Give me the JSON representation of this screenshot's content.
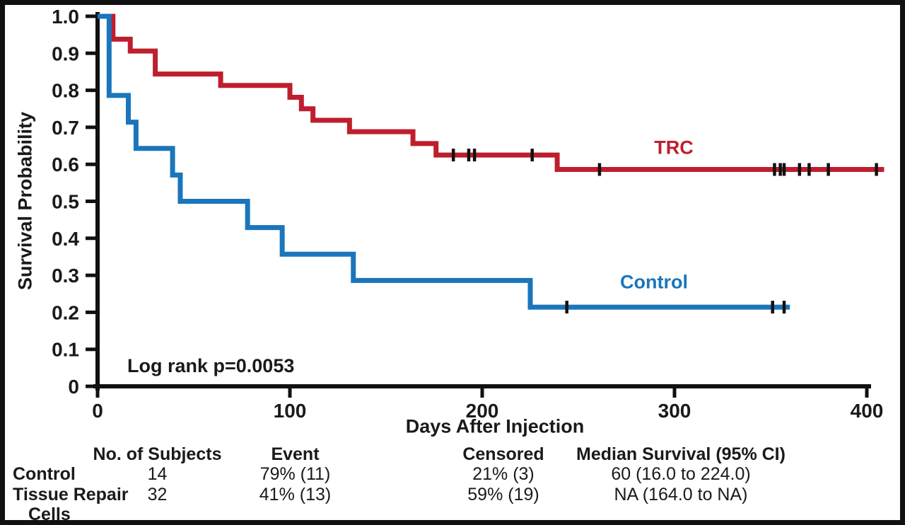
{
  "chart_data": {
    "type": "line",
    "subtype": "kaplan-meier-step-curves",
    "title": "",
    "xlabel": "Days After Injection",
    "ylabel": "Survival Probability",
    "xlim": [
      0,
      400
    ],
    "ylim": [
      0,
      1.0
    ],
    "grid": false,
    "xticks": [
      [
        0,
        "0"
      ],
      [
        100,
        "100"
      ],
      [
        200,
        "200"
      ],
      [
        300,
        "300"
      ],
      [
        400,
        "400"
      ]
    ],
    "yticks": [
      [
        0,
        "0"
      ],
      [
        0.1,
        "0.1"
      ],
      [
        0.2,
        "0.2"
      ],
      [
        0.3,
        "0.3"
      ],
      [
        0.4,
        "0.4"
      ],
      [
        0.5,
        "0.5"
      ],
      [
        0.6,
        "0.6"
      ],
      [
        0.7,
        "0.7"
      ],
      [
        0.8,
        "0.8"
      ],
      [
        0.9,
        "0.9"
      ],
      [
        1.0,
        "1.0"
      ]
    ],
    "annotation": "Log rank p=0.0053",
    "series": [
      {
        "name": "TRC",
        "color": "#BE1E2D",
        "end_day": 409,
        "steps": [
          [
            0,
            1.0
          ],
          [
            8,
            0.938
          ],
          [
            17,
            0.906
          ],
          [
            30,
            0.844
          ],
          [
            64,
            0.813
          ],
          [
            100,
            0.781
          ],
          [
            106,
            0.75
          ],
          [
            112,
            0.719
          ],
          [
            131,
            0.688
          ],
          [
            164,
            0.656
          ],
          [
            176,
            0.625
          ],
          [
            239,
            0.586
          ]
        ],
        "censored": [
          [
            185,
            0.625
          ],
          [
            193,
            0.625
          ],
          [
            196,
            0.625
          ],
          [
            226,
            0.625
          ],
          [
            261,
            0.586
          ],
          [
            352,
            0.586
          ],
          [
            355,
            0.586
          ],
          [
            357,
            0.586
          ],
          [
            365,
            0.586
          ],
          [
            370,
            0.586
          ],
          [
            380,
            0.586
          ],
          [
            405,
            0.586
          ]
        ]
      },
      {
        "name": "Control",
        "color": "#1B75BB",
        "end_day": 360,
        "steps": [
          [
            0,
            1.0
          ],
          [
            6,
            0.786
          ],
          [
            16,
            0.714
          ],
          [
            20,
            0.643
          ],
          [
            39,
            0.571
          ],
          [
            43,
            0.5
          ],
          [
            78,
            0.429
          ],
          [
            96,
            0.357
          ],
          [
            133,
            0.286
          ],
          [
            225,
            0.214
          ]
        ],
        "censored": [
          [
            244,
            0.214
          ],
          [
            351,
            0.214
          ],
          [
            357,
            0.214
          ]
        ]
      }
    ]
  },
  "table": {
    "headers": {
      "subjects": "No. of Subjects",
      "event": "Event",
      "censored": "Censored",
      "median": "Median Survival (95% CI)"
    },
    "rows": [
      {
        "label": "Control",
        "label2": "",
        "subjects": "14",
        "event": "79% (11)",
        "censored": "21% (3)",
        "median": "60 (16.0 to 224.0)"
      },
      {
        "label": "Tissue Repair",
        "label2": "Cells",
        "subjects": "32",
        "event": "41% (13)",
        "censored": "59% (19)",
        "median": "NA (164.0 to NA)"
      }
    ]
  }
}
